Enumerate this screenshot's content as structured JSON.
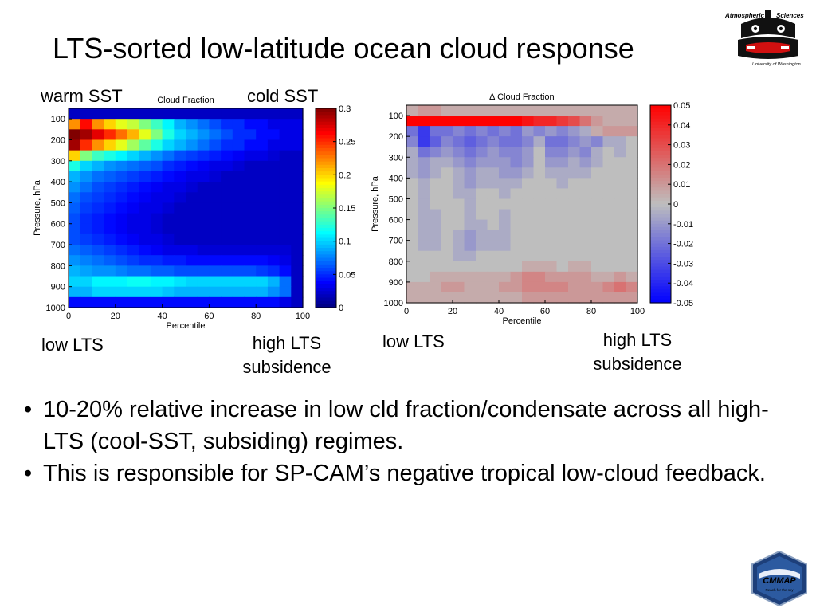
{
  "slide": {
    "title": "LTS-sorted low-latitude ocean cloud response",
    "annotations": {
      "warm_sst": "warm SST",
      "cold_sst": "cold SST",
      "low_lts_left": "low LTS",
      "high_lts_left": "high LTS",
      "subsidence_left": "subsidence",
      "low_lts_right": "low LTS",
      "high_lts_right": "high LTS",
      "subsidence_right": "subsidence"
    },
    "bullets": [
      "10-20% relative increase in low cld fraction/condensate across all high-LTS (cool-SST, subsiding) regimes.",
      "This is responsible for SP-CAM’s negative tropical low-cloud feedback."
    ],
    "logos": {
      "uw_line1": "Atmospheric",
      "uw_line2": "Sciences",
      "uw_line3": "University of Washington",
      "cmmap_name": "CMMAP",
      "cmmap_tagline": "Reach for the sky"
    }
  },
  "chart_data": [
    {
      "type": "heatmap",
      "title": "Cloud Fraction",
      "xlabel": "Percentile",
      "ylabel": "Pressure, hPa",
      "xlim": [
        0,
        100
      ],
      "ylim": [
        1000,
        50
      ],
      "xticks": [
        0,
        20,
        40,
        60,
        80,
        100
      ],
      "yticks": [
        100,
        200,
        300,
        400,
        500,
        600,
        700,
        800,
        900,
        1000
      ],
      "colorbar": {
        "min": 0,
        "max": 0.3,
        "ticks": [
          0,
          0.05,
          0.1,
          0.15,
          0.2,
          0.25,
          0.3
        ],
        "colormap": "jet"
      },
      "x": [
        2.5,
        7.5,
        12.5,
        17.5,
        22.5,
        27.5,
        32.5,
        37.5,
        42.5,
        47.5,
        52.5,
        57.5,
        62.5,
        67.5,
        72.5,
        77.5,
        82.5,
        87.5,
        92.5,
        97.5
      ],
      "y": [
        75,
        125,
        175,
        225,
        275,
        325,
        375,
        425,
        475,
        525,
        575,
        625,
        675,
        725,
        775,
        825,
        875,
        925,
        975
      ],
      "z": [
        [
          0.02,
          0.02,
          0.02,
          0.02,
          0.02,
          0.02,
          0.02,
          0.02,
          0.02,
          0.02,
          0.02,
          0.02,
          0.02,
          0.02,
          0.02,
          0.02,
          0.02,
          0.02,
          0.02,
          0.02
        ],
        [
          0.22,
          0.26,
          0.22,
          0.2,
          0.18,
          0.17,
          0.15,
          0.13,
          0.11,
          0.09,
          0.08,
          0.07,
          0.06,
          0.05,
          0.05,
          0.04,
          0.04,
          0.03,
          0.03,
          0.03
        ],
        [
          0.3,
          0.29,
          0.27,
          0.25,
          0.23,
          0.21,
          0.18,
          0.15,
          0.12,
          0.1,
          0.09,
          0.08,
          0.07,
          0.06,
          0.05,
          0.05,
          0.04,
          0.04,
          0.03,
          0.03
        ],
        [
          0.29,
          0.25,
          0.22,
          0.2,
          0.18,
          0.16,
          0.14,
          0.12,
          0.1,
          0.09,
          0.08,
          0.07,
          0.06,
          0.05,
          0.05,
          0.04,
          0.04,
          0.03,
          0.03,
          0.03
        ],
        [
          0.2,
          0.15,
          0.13,
          0.12,
          0.11,
          0.1,
          0.09,
          0.08,
          0.07,
          0.06,
          0.055,
          0.05,
          0.045,
          0.04,
          0.035,
          0.03,
          0.03,
          0.025,
          0.02,
          0.02
        ],
        [
          0.12,
          0.1,
          0.09,
          0.08,
          0.075,
          0.07,
          0.065,
          0.06,
          0.05,
          0.045,
          0.04,
          0.035,
          0.03,
          0.03,
          0.025,
          0.02,
          0.02,
          0.02,
          0.02,
          0.02
        ],
        [
          0.09,
          0.08,
          0.07,
          0.065,
          0.06,
          0.055,
          0.05,
          0.045,
          0.04,
          0.035,
          0.03,
          0.03,
          0.025,
          0.02,
          0.02,
          0.02,
          0.02,
          0.02,
          0.02,
          0.02
        ],
        [
          0.08,
          0.07,
          0.06,
          0.055,
          0.05,
          0.045,
          0.04,
          0.035,
          0.03,
          0.03,
          0.025,
          0.02,
          0.02,
          0.02,
          0.02,
          0.02,
          0.02,
          0.02,
          0.02,
          0.02
        ],
        [
          0.07,
          0.06,
          0.055,
          0.05,
          0.045,
          0.04,
          0.035,
          0.03,
          0.03,
          0.025,
          0.02,
          0.02,
          0.02,
          0.02,
          0.02,
          0.02,
          0.02,
          0.02,
          0.02,
          0.02
        ],
        [
          0.065,
          0.055,
          0.05,
          0.045,
          0.04,
          0.035,
          0.03,
          0.03,
          0.025,
          0.02,
          0.02,
          0.02,
          0.02,
          0.02,
          0.02,
          0.02,
          0.02,
          0.02,
          0.02,
          0.02
        ],
        [
          0.06,
          0.05,
          0.045,
          0.04,
          0.035,
          0.03,
          0.03,
          0.025,
          0.02,
          0.02,
          0.02,
          0.02,
          0.02,
          0.02,
          0.02,
          0.02,
          0.02,
          0.02,
          0.02,
          0.02
        ],
        [
          0.06,
          0.05,
          0.045,
          0.04,
          0.035,
          0.03,
          0.03,
          0.025,
          0.02,
          0.02,
          0.02,
          0.02,
          0.02,
          0.02,
          0.02,
          0.02,
          0.02,
          0.02,
          0.02,
          0.02
        ],
        [
          0.06,
          0.055,
          0.05,
          0.045,
          0.04,
          0.035,
          0.03,
          0.03,
          0.025,
          0.02,
          0.02,
          0.02,
          0.02,
          0.02,
          0.02,
          0.02,
          0.02,
          0.02,
          0.02,
          0.02
        ],
        [
          0.07,
          0.065,
          0.06,
          0.055,
          0.05,
          0.045,
          0.04,
          0.035,
          0.03,
          0.03,
          0.03,
          0.025,
          0.025,
          0.025,
          0.025,
          0.025,
          0.025,
          0.025,
          0.025,
          0.02
        ],
        [
          0.08,
          0.075,
          0.07,
          0.065,
          0.06,
          0.055,
          0.05,
          0.05,
          0.045,
          0.045,
          0.04,
          0.04,
          0.04,
          0.04,
          0.04,
          0.04,
          0.04,
          0.035,
          0.03,
          0.02
        ],
        [
          0.09,
          0.085,
          0.08,
          0.08,
          0.075,
          0.07,
          0.07,
          0.065,
          0.065,
          0.06,
          0.06,
          0.06,
          0.06,
          0.06,
          0.06,
          0.06,
          0.055,
          0.05,
          0.04,
          0.02
        ],
        [
          0.1,
          0.1,
          0.11,
          0.11,
          0.11,
          0.115,
          0.115,
          0.11,
          0.11,
          0.105,
          0.1,
          0.1,
          0.1,
          0.1,
          0.1,
          0.1,
          0.1,
          0.09,
          0.07,
          0.02
        ],
        [
          0.09,
          0.09,
          0.1,
          0.1,
          0.1,
          0.1,
          0.1,
          0.1,
          0.095,
          0.09,
          0.09,
          0.09,
          0.09,
          0.09,
          0.09,
          0.09,
          0.09,
          0.08,
          0.07,
          0.02
        ],
        [
          0.04,
          0.04,
          0.04,
          0.04,
          0.04,
          0.04,
          0.04,
          0.04,
          0.04,
          0.04,
          0.04,
          0.04,
          0.04,
          0.04,
          0.04,
          0.04,
          0.04,
          0.04,
          0.03,
          0.02
        ]
      ]
    },
    {
      "type": "heatmap",
      "title": "∆ Cloud Fraction",
      "xlabel": "Percentile",
      "ylabel": "Pressure, hPa",
      "xlim": [
        0,
        100
      ],
      "ylim": [
        1000,
        50
      ],
      "xticks": [
        0,
        20,
        40,
        60,
        80,
        100
      ],
      "yticks": [
        100,
        200,
        300,
        400,
        500,
        600,
        700,
        800,
        900,
        1000
      ],
      "colorbar": {
        "min": -0.05,
        "max": 0.05,
        "ticks": [
          0.05,
          0.04,
          0.03,
          0.02,
          0.01,
          0,
          -0.01,
          -0.02,
          -0.03,
          -0.04,
          -0.05
        ],
        "colormap": "blue-gray-red"
      },
      "x": [
        2.5,
        7.5,
        12.5,
        17.5,
        22.5,
        27.5,
        32.5,
        37.5,
        42.5,
        47.5,
        52.5,
        57.5,
        62.5,
        67.5,
        72.5,
        77.5,
        82.5,
        87.5,
        92.5,
        97.5
      ],
      "y": [
        75,
        125,
        175,
        225,
        275,
        325,
        375,
        425,
        475,
        525,
        575,
        625,
        675,
        725,
        775,
        825,
        875,
        925,
        975
      ],
      "z": [
        [
          0.005,
          0.01,
          0.01,
          0.005,
          0.005,
          0.005,
          0.005,
          0.005,
          0.005,
          0.005,
          0.005,
          0.005,
          0.005,
          0.005,
          0.005,
          0.005,
          0.005,
          0.005,
          0.005,
          0.005
        ],
        [
          0.05,
          0.05,
          0.05,
          0.05,
          0.05,
          0.05,
          0.05,
          0.05,
          0.05,
          0.05,
          0.045,
          0.04,
          0.04,
          0.035,
          0.03,
          0.02,
          0.01,
          0.005,
          0.005,
          0.005
        ],
        [
          -0.02,
          -0.035,
          -0.02,
          -0.02,
          -0.015,
          -0.02,
          -0.015,
          -0.02,
          -0.015,
          -0.02,
          -0.01,
          -0.015,
          -0.01,
          -0.015,
          -0.01,
          -0.005,
          0.005,
          0.01,
          0.01,
          0.01
        ],
        [
          -0.015,
          -0.035,
          -0.025,
          -0.015,
          -0.02,
          -0.025,
          -0.02,
          -0.015,
          -0.02,
          -0.02,
          -0.015,
          -0.005,
          -0.02,
          -0.02,
          -0.015,
          -0.01,
          -0.015,
          -0.005,
          -0.005,
          0.0
        ],
        [
          -0.005,
          -0.02,
          -0.015,
          -0.01,
          -0.015,
          -0.02,
          -0.015,
          -0.01,
          -0.015,
          -0.015,
          -0.01,
          0.0,
          -0.015,
          -0.015,
          -0.01,
          -0.015,
          -0.005,
          0.0,
          -0.005,
          0.0
        ],
        [
          -0.005,
          -0.01,
          -0.005,
          -0.005,
          -0.01,
          -0.015,
          -0.01,
          -0.01,
          -0.01,
          -0.015,
          -0.01,
          0.0,
          -0.01,
          -0.01,
          -0.005,
          -0.01,
          -0.005,
          0.0,
          0.0,
          0.0
        ],
        [
          -0.005,
          -0.01,
          -0.005,
          0.0,
          -0.005,
          -0.01,
          -0.005,
          -0.005,
          -0.01,
          -0.01,
          -0.005,
          0.0,
          -0.005,
          -0.005,
          -0.005,
          -0.005,
          0.0,
          0.0,
          0.0,
          0.0
        ],
        [
          0.0,
          -0.005,
          0.0,
          0.0,
          -0.005,
          -0.01,
          -0.005,
          -0.005,
          -0.005,
          -0.005,
          0.0,
          0.0,
          0.0,
          -0.005,
          0.0,
          0.0,
          0.0,
          0.0,
          0.0,
          0.0
        ],
        [
          0.0,
          -0.005,
          0.0,
          0.0,
          -0.005,
          -0.005,
          0.0,
          0.0,
          -0.005,
          0.0,
          0.0,
          0.0,
          0.0,
          0.0,
          0.0,
          0.0,
          0.0,
          0.0,
          0.0,
          0.0
        ],
        [
          0.0,
          -0.005,
          0.0,
          0.0,
          0.0,
          -0.005,
          0.0,
          0.0,
          0.0,
          0.0,
          0.0,
          0.0,
          0.0,
          0.0,
          0.0,
          0.0,
          0.0,
          0.0,
          0.0,
          0.0
        ],
        [
          0.0,
          -0.005,
          -0.005,
          0.0,
          0.0,
          -0.005,
          0.0,
          0.0,
          -0.005,
          0.0,
          0.0,
          0.0,
          0.0,
          0.0,
          0.0,
          0.0,
          0.0,
          0.0,
          0.0,
          0.0
        ],
        [
          0.0,
          -0.005,
          -0.005,
          0.0,
          0.0,
          -0.005,
          -0.005,
          0.0,
          -0.005,
          0.0,
          0.0,
          0.0,
          0.0,
          0.0,
          0.0,
          0.0,
          0.0,
          0.0,
          0.0,
          0.0
        ],
        [
          0.0,
          -0.005,
          -0.005,
          0.0,
          -0.005,
          -0.01,
          -0.005,
          -0.005,
          -0.005,
          0.0,
          0.0,
          0.0,
          0.0,
          0.0,
          0.0,
          0.0,
          0.0,
          0.0,
          0.0,
          0.0
        ],
        [
          0.0,
          -0.005,
          -0.005,
          0.0,
          -0.005,
          -0.01,
          -0.005,
          -0.005,
          -0.005,
          0.0,
          0.0,
          0.0,
          0.0,
          0.0,
          0.0,
          0.0,
          0.0,
          0.0,
          0.0,
          0.0
        ],
        [
          0.0,
          0.0,
          0.0,
          0.0,
          -0.005,
          -0.005,
          0.0,
          0.0,
          0.0,
          0.0,
          0.0,
          0.0,
          0.0,
          0.0,
          0.0,
          0.0,
          0.0,
          0.0,
          0.0,
          0.0
        ],
        [
          0.0,
          0.0,
          0.0,
          0.0,
          0.0,
          0.0,
          0.0,
          0.0,
          0.0,
          0.0,
          0.005,
          0.005,
          0.005,
          0.0,
          0.005,
          0.005,
          0.0,
          0.0,
          0.0,
          0.0
        ],
        [
          0.0,
          0.0,
          0.005,
          0.005,
          0.005,
          0.005,
          0.005,
          0.005,
          0.005,
          0.01,
          0.015,
          0.015,
          0.01,
          0.01,
          0.01,
          0.01,
          0.005,
          0.005,
          0.01,
          0.005
        ],
        [
          0.005,
          0.005,
          0.005,
          0.01,
          0.01,
          0.005,
          0.005,
          0.005,
          0.01,
          0.01,
          0.015,
          0.015,
          0.015,
          0.015,
          0.01,
          0.01,
          0.01,
          0.015,
          0.02,
          0.015
        ],
        [
          0.005,
          0.005,
          0.005,
          0.005,
          0.005,
          0.005,
          0.005,
          0.005,
          0.005,
          0.005,
          0.01,
          0.01,
          0.01,
          0.01,
          0.01,
          0.01,
          0.01,
          0.01,
          0.01,
          0.01
        ]
      ]
    }
  ]
}
